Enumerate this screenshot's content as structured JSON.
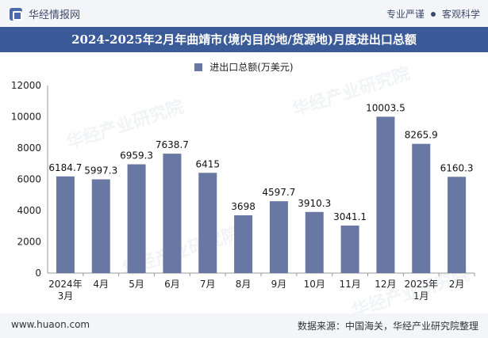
{
  "header": {
    "brand": "华经情报网",
    "tag1": "专业严谨",
    "tag2": "客观科学"
  },
  "title": "2024-2025年2月年曲靖市(境内目的地/货源地)月度进出口总额",
  "watermark": "华经产业研究院",
  "colors": {
    "bar": "#6878a3",
    "title_bg": "#3a5a98"
  },
  "chart_data": {
    "type": "bar",
    "title": "2024-2025年2月年曲靖市(境内目的地/货源地)月度进出口总额",
    "categories": [
      "2024年\n3月",
      "4月",
      "5月",
      "6月",
      "7月",
      "8月",
      "9月",
      "10月",
      "11月",
      "12月",
      "2025年\n1月",
      "2月"
    ],
    "series": [
      {
        "name": "进出口总额(万美元)",
        "values": [
          6184.7,
          5997.3,
          6959.3,
          7638.7,
          6415,
          3698,
          4597.7,
          3910.3,
          3041.1,
          10003.5,
          8265.9,
          6160.3
        ]
      }
    ],
    "ylim": [
      0,
      12000
    ],
    "yticks": [
      0,
      2000,
      4000,
      6000,
      8000,
      10000,
      12000
    ],
    "xlabel": "",
    "ylabel": "",
    "legend_position": "top-center",
    "grid": false
  },
  "footer": {
    "site": "www.huaon.com",
    "source": "数据来源：中国海关，华经产业研究院整理"
  }
}
